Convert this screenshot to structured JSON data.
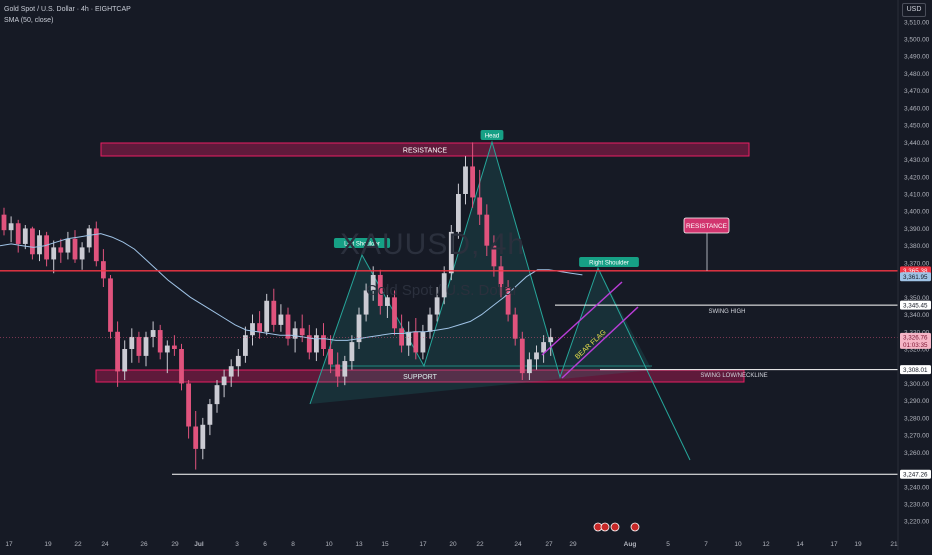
{
  "legend": {
    "line1": "Gold Spot / U.S. Dollar · 4h · EIGHTCAP",
    "line2": "SMA (50, close)"
  },
  "currency": "USD",
  "watermark": "XAUUSD, 4h",
  "watermark_sub": "Gold Spot / U.S. Dollar",
  "colors": {
    "background": "#161a25",
    "up": "#cbcbd3",
    "down": "#e0537d",
    "sma": "#9fc3e6",
    "resistance_line": "#f23645",
    "zone_border": "#e91e63",
    "zone_fill": "rgba(233,30,99,0.35)",
    "pattern": "#26a69a",
    "flag": "#b83dd6",
    "white_line": "#ffffff"
  },
  "chart_data": {
    "type": "candlestick",
    "title": "Gold Spot / U.S. Dollar · 4h · EIGHTCAP",
    "y_axis": {
      "ylim": [
        3212,
        3518
      ],
      "ticks": [
        3510,
        3500,
        3490,
        3480,
        3470,
        3460,
        3450,
        3440,
        3430,
        3420,
        3410,
        3400,
        3390,
        3380,
        3370,
        3350,
        3340,
        3330,
        3320,
        3300,
        3290,
        3280,
        3270,
        3260,
        3240,
        3230,
        3220
      ]
    },
    "x_axis": {
      "ticks": [
        "17",
        "19",
        "22",
        "24",
        "26",
        "29",
        "Jul",
        "3",
        "6",
        "8",
        "10",
        "13",
        "15",
        "17",
        "20",
        "22",
        "24",
        "27",
        "29",
        "Aug",
        "5",
        "7",
        "10",
        "12",
        "14",
        "17",
        "19",
        "21"
      ]
    },
    "candles_ohlc": [
      [
        3398,
        3402,
        3386,
        3389
      ],
      [
        3389,
        3397,
        3382,
        3393
      ],
      [
        3393,
        3395,
        3376,
        3381
      ],
      [
        3381,
        3392,
        3378,
        3390
      ],
      [
        3390,
        3391,
        3372,
        3375
      ],
      [
        3375,
        3389,
        3371,
        3386
      ],
      [
        3386,
        3388,
        3368,
        3372
      ],
      [
        3372,
        3383,
        3364,
        3379
      ],
      [
        3379,
        3384,
        3370,
        3376
      ],
      [
        3376,
        3388,
        3372,
        3384
      ],
      [
        3384,
        3389,
        3370,
        3372
      ],
      [
        3372,
        3382,
        3366,
        3379
      ],
      [
        3379,
        3392,
        3376,
        3390
      ],
      [
        3390,
        3394,
        3368,
        3371
      ],
      [
        3371,
        3378,
        3356,
        3361
      ],
      [
        3361,
        3363,
        3326,
        3330
      ],
      [
        3330,
        3336,
        3298,
        3307
      ],
      [
        3307,
        3325,
        3302,
        3320
      ],
      [
        3320,
        3332,
        3312,
        3327
      ],
      [
        3327,
        3330,
        3312,
        3316
      ],
      [
        3316,
        3330,
        3310,
        3327
      ],
      [
        3327,
        3336,
        3321,
        3331
      ],
      [
        3331,
        3334,
        3314,
        3318
      ],
      [
        3318,
        3325,
        3306,
        3322
      ],
      [
        3322,
        3328,
        3316,
        3320
      ],
      [
        3320,
        3323,
        3296,
        3300
      ],
      [
        3300,
        3302,
        3268,
        3275
      ],
      [
        3275,
        3284,
        3250,
        3262
      ],
      [
        3262,
        3280,
        3256,
        3276
      ],
      [
        3276,
        3291,
        3270,
        3288
      ],
      [
        3288,
        3302,
        3283,
        3299
      ],
      [
        3299,
        3308,
        3292,
        3304
      ],
      [
        3304,
        3314,
        3298,
        3310
      ],
      [
        3310,
        3320,
        3304,
        3316
      ],
      [
        3316,
        3333,
        3312,
        3328
      ],
      [
        3328,
        3340,
        3322,
        3335
      ],
      [
        3335,
        3342,
        3326,
        3330
      ],
      [
        3330,
        3352,
        3328,
        3348
      ],
      [
        3348,
        3355,
        3330,
        3334
      ],
      [
        3334,
        3346,
        3330,
        3340
      ],
      [
        3340,
        3344,
        3322,
        3326
      ],
      [
        3326,
        3336,
        3318,
        3332
      ],
      [
        3332,
        3340,
        3324,
        3328
      ],
      [
        3328,
        3334,
        3314,
        3318
      ],
      [
        3318,
        3332,
        3313,
        3328
      ],
      [
        3328,
        3335,
        3316,
        3320
      ],
      [
        3320,
        3328,
        3306,
        3311
      ],
      [
        3311,
        3318,
        3298,
        3304
      ],
      [
        3304,
        3316,
        3299,
        3313
      ],
      [
        3313,
        3328,
        3308,
        3324
      ],
      [
        3324,
        3344,
        3320,
        3340
      ],
      [
        3340,
        3358,
        3336,
        3354
      ],
      [
        3354,
        3368,
        3348,
        3363
      ],
      [
        3363,
        3366,
        3340,
        3345
      ],
      [
        3345,
        3356,
        3338,
        3350
      ],
      [
        3350,
        3354,
        3328,
        3332
      ],
      [
        3332,
        3340,
        3318,
        3322
      ],
      [
        3322,
        3336,
        3316,
        3330
      ],
      [
        3330,
        3338,
        3314,
        3318
      ],
      [
        3318,
        3334,
        3314,
        3330
      ],
      [
        3330,
        3344,
        3326,
        3340
      ],
      [
        3340,
        3356,
        3336,
        3350
      ],
      [
        3350,
        3368,
        3346,
        3364
      ],
      [
        3364,
        3392,
        3360,
        3388
      ],
      [
        3388,
        3416,
        3384,
        3410
      ],
      [
        3410,
        3432,
        3404,
        3426
      ],
      [
        3426,
        3440,
        3402,
        3408
      ],
      [
        3408,
        3424,
        3392,
        3398
      ],
      [
        3398,
        3404,
        3374,
        3380
      ],
      [
        3380,
        3386,
        3362,
        3368
      ],
      [
        3368,
        3374,
        3350,
        3356
      ],
      [
        3356,
        3360,
        3336,
        3340
      ],
      [
        3340,
        3344,
        3322,
        3326
      ],
      [
        3326,
        3330,
        3302,
        3306
      ],
      [
        3306,
        3318,
        3302,
        3314
      ],
      [
        3314,
        3322,
        3308,
        3318
      ],
      [
        3318,
        3328,
        3312,
        3324
      ],
      [
        3324,
        3332,
        3316,
        3327
      ]
    ],
    "sma_50": [
      3380,
      3381,
      3380,
      3379,
      3380,
      3382,
      3384,
      3385,
      3386,
      3387,
      3385,
      3382,
      3378,
      3372,
      3366,
      3360,
      3355,
      3350,
      3346,
      3342,
      3338,
      3334,
      3331,
      3330,
      3329,
      3328,
      3328,
      3327,
      3326,
      3326,
      3325,
      3325,
      3326,
      3327,
      3328,
      3329,
      3329,
      3330,
      3330,
      3331,
      3332,
      3334,
      3336,
      3340,
      3345,
      3350,
      3356,
      3362,
      3366,
      3366,
      3365,
      3364,
      3363
    ],
    "levels": {
      "current_price": "3,326.76",
      "countdown": "01:03:35",
      "red_line": "3,365.38",
      "sma_value": "3,361.95",
      "swing_high": "3,345.45",
      "swing_low": "3,308.01",
      "lower_line": "3,247.26"
    },
    "annotations": {
      "resistance_zone": "RESISTANCE",
      "support_zone": "SUPPORT",
      "head": "Head",
      "left_shoulder": "Left Shoulder",
      "right_shoulder": "Right Shoulder",
      "resistance_tag": "RESISTANCE",
      "swing_high": "SWING HIGH",
      "swing_low": "SWING LOW/NECKLINE",
      "bear_flag": "BEAR FLAG"
    },
    "grid": false,
    "legend_position": "top-left"
  }
}
